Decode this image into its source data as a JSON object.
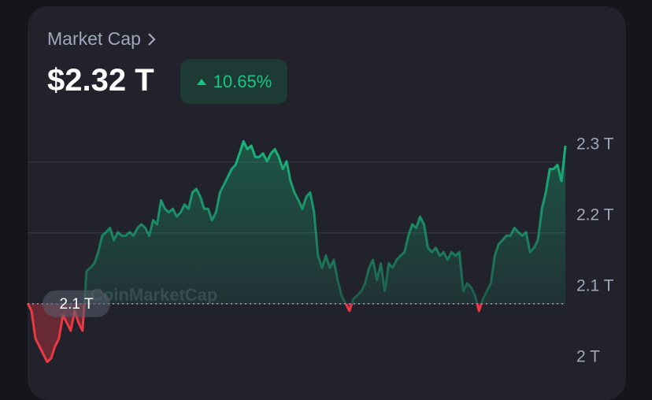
{
  "chart_data": {
    "type": "line",
    "title": "Market Cap",
    "price": "$2.32 T",
    "change": "10.65%",
    "watermark": "CoinMarketCap",
    "reference_line": {
      "value": 2.1,
      "label": "2.1 T"
    },
    "up_color": "#16c784",
    "down_color": "#ea3943",
    "ylim": [
      2.012,
      2.373
    ],
    "yticks": [
      {
        "value": 2.0,
        "label": "2 T"
      },
      {
        "value": 2.1,
        "label": "2.1 T"
      },
      {
        "value": 2.2,
        "label": "2.2 T"
      },
      {
        "value": 2.3,
        "label": "2.3 T"
      }
    ],
    "grid": true,
    "values": [
      2.101,
      2.09,
      2.051,
      2.04,
      2.029,
      2.018,
      2.023,
      2.04,
      2.051,
      2.084,
      2.073,
      2.062,
      2.09,
      2.073,
      2.062,
      2.146,
      2.151,
      2.157,
      2.173,
      2.196,
      2.201,
      2.207,
      2.19,
      2.201,
      2.196,
      2.196,
      2.201,
      2.196,
      2.207,
      2.212,
      2.207,
      2.196,
      2.218,
      2.212,
      2.246,
      2.234,
      2.229,
      2.234,
      2.223,
      2.229,
      2.24,
      2.234,
      2.257,
      2.262,
      2.251,
      2.234,
      2.234,
      2.218,
      2.229,
      2.257,
      2.268,
      2.279,
      2.29,
      2.296,
      2.312,
      2.329,
      2.318,
      2.323,
      2.307,
      2.307,
      2.312,
      2.301,
      2.312,
      2.318,
      2.307,
      2.29,
      2.301,
      2.273,
      2.257,
      2.246,
      2.234,
      2.251,
      2.257,
      2.229,
      2.168,
      2.151,
      2.168,
      2.151,
      2.162,
      2.134,
      2.112,
      2.101,
      2.09,
      2.107,
      2.112,
      2.118,
      2.129,
      2.151,
      2.162,
      2.134,
      2.157,
      2.118,
      2.157,
      2.151,
      2.162,
      2.168,
      2.173,
      2.196,
      2.212,
      2.207,
      2.223,
      2.212,
      2.179,
      2.173,
      2.179,
      2.168,
      2.173,
      2.162,
      2.173,
      2.168,
      2.173,
      2.118,
      2.129,
      2.123,
      2.112,
      2.09,
      2.107,
      2.118,
      2.129,
      2.168,
      2.184,
      2.19,
      2.196,
      2.196,
      2.207,
      2.201,
      2.196,
      2.201,
      2.173,
      2.179,
      2.19,
      2.234,
      2.257,
      2.29,
      2.29,
      2.296,
      2.273,
      2.323
    ]
  }
}
